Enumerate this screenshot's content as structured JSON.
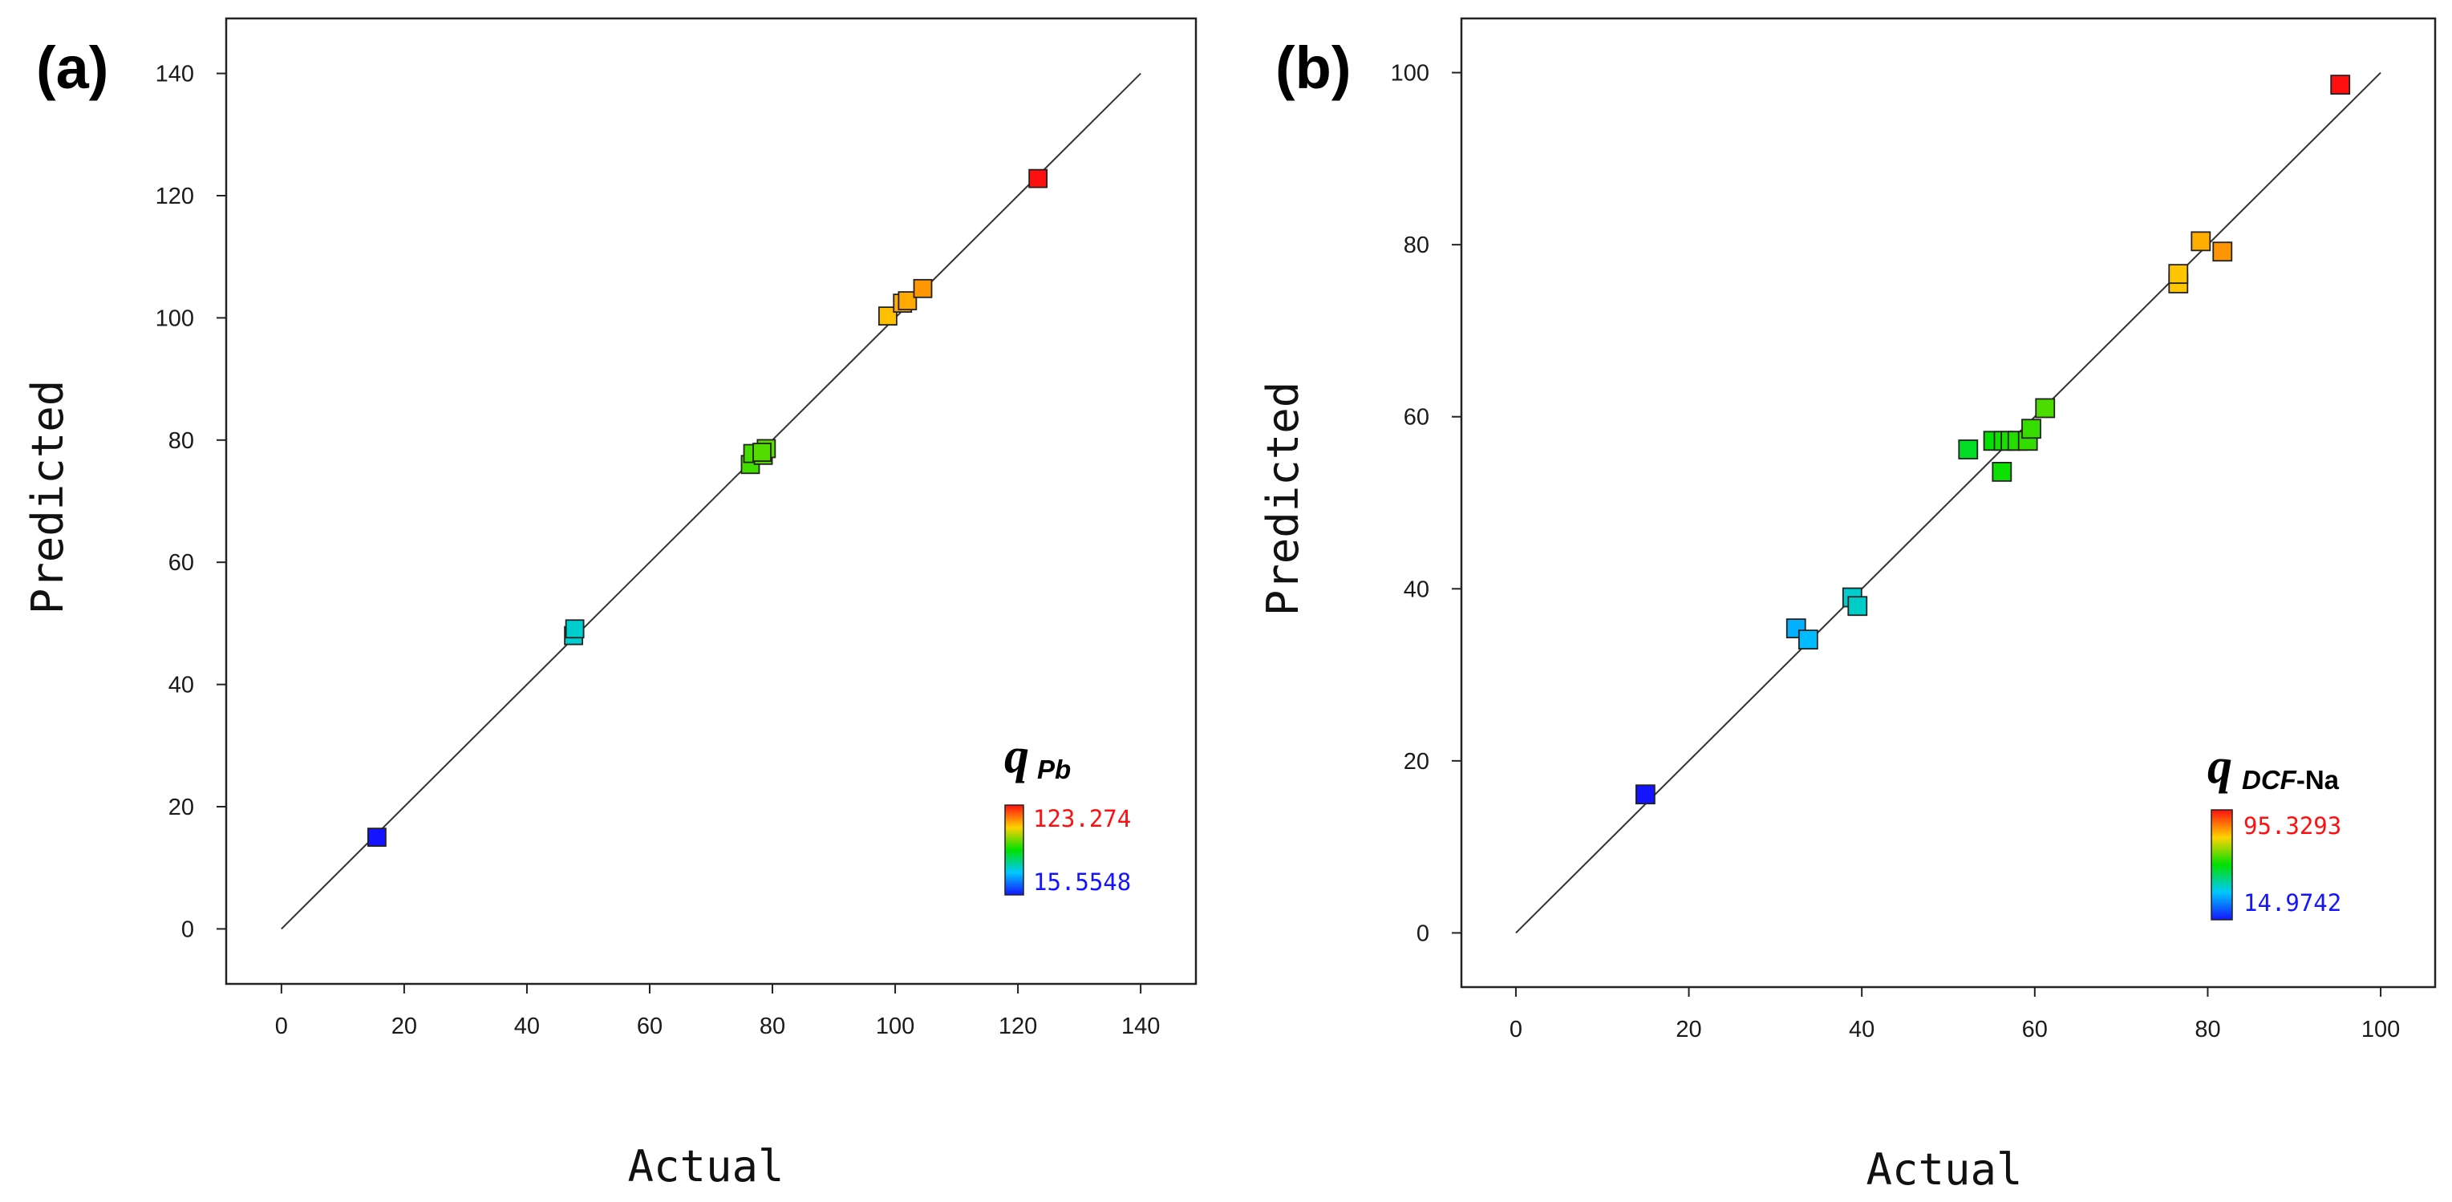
{
  "colors": {
    "low": "#1414ff",
    "mid": "#00e000",
    "high": "#ff1010",
    "line": "#333333",
    "frame": "#222222"
  },
  "chart_data": [
    {
      "panel_label": "(a)",
      "type": "scatter",
      "xlabel": "Actual",
      "ylabel": "Predicted",
      "xlim": [
        -9,
        149
      ],
      "ylim": [
        -9,
        149
      ],
      "xticks": [
        "0",
        "20",
        "40",
        "60",
        "80",
        "100",
        "120",
        "140"
      ],
      "yticks": [
        "0",
        "20",
        "40",
        "60",
        "80",
        "100",
        "120",
        "140"
      ],
      "reference_line": {
        "from": [
          0,
          0
        ],
        "to": [
          140,
          140
        ]
      },
      "legend": {
        "symbol": "q",
        "subscript": "Pb",
        "subscript_italic": true,
        "max_label": "123.274",
        "min_label": "15.5548",
        "max": 123.274,
        "min": 15.5548
      },
      "points": [
        {
          "x": 15.5548,
          "y": 15.0
        },
        {
          "x": 47.6,
          "y": 48.0
        },
        {
          "x": 47.8,
          "y": 49.1
        },
        {
          "x": 76.4,
          "y": 76.0
        },
        {
          "x": 76.8,
          "y": 77.8
        },
        {
          "x": 78.5,
          "y": 77.5
        },
        {
          "x": 79.0,
          "y": 78.6
        },
        {
          "x": 78.3,
          "y": 78.0
        },
        {
          "x": 98.8,
          "y": 100.3
        },
        {
          "x": 101.2,
          "y": 102.4
        },
        {
          "x": 102.0,
          "y": 102.8
        },
        {
          "x": 104.5,
          "y": 104.8
        },
        {
          "x": 123.274,
          "y": 122.8
        }
      ]
    },
    {
      "panel_label": "(b)",
      "type": "scatter",
      "xlabel": "Actual",
      "ylabel": "Predicted",
      "xlim": [
        -6.3,
        106.3
      ],
      "ylim": [
        -6.3,
        106.3
      ],
      "xticks": [
        "0",
        "20",
        "40",
        "60",
        "80",
        "100"
      ],
      "yticks": [
        "0",
        "20",
        "40",
        "60",
        "80",
        "100"
      ],
      "reference_line": {
        "from": [
          0,
          0
        ],
        "to": [
          100,
          100
        ]
      },
      "legend": {
        "symbol": "q",
        "subscript": "DCF",
        "subscript_suffix": "-Na",
        "subscript_italic": true,
        "max_label": "95.3293",
        "min_label": "14.9742",
        "max": 95.3293,
        "min": 14.9742
      },
      "points": [
        {
          "x": 14.9742,
          "y": 16.1
        },
        {
          "x": 32.4,
          "y": 35.4
        },
        {
          "x": 33.8,
          "y": 34.1
        },
        {
          "x": 38.9,
          "y": 39.0
        },
        {
          "x": 39.5,
          "y": 38.0
        },
        {
          "x": 52.3,
          "y": 56.2
        },
        {
          "x": 55.2,
          "y": 57.2
        },
        {
          "x": 56.2,
          "y": 53.6
        },
        {
          "x": 56.4,
          "y": 57.2
        },
        {
          "x": 57.2,
          "y": 57.2
        },
        {
          "x": 58.0,
          "y": 57.2
        },
        {
          "x": 59.2,
          "y": 57.2
        },
        {
          "x": 59.6,
          "y": 58.6
        },
        {
          "x": 61.2,
          "y": 61.0
        },
        {
          "x": 76.6,
          "y": 75.5
        },
        {
          "x": 76.6,
          "y": 76.6
        },
        {
          "x": 79.2,
          "y": 80.4
        },
        {
          "x": 81.7,
          "y": 79.2
        },
        {
          "x": 95.3293,
          "y": 98.6
        }
      ]
    }
  ]
}
